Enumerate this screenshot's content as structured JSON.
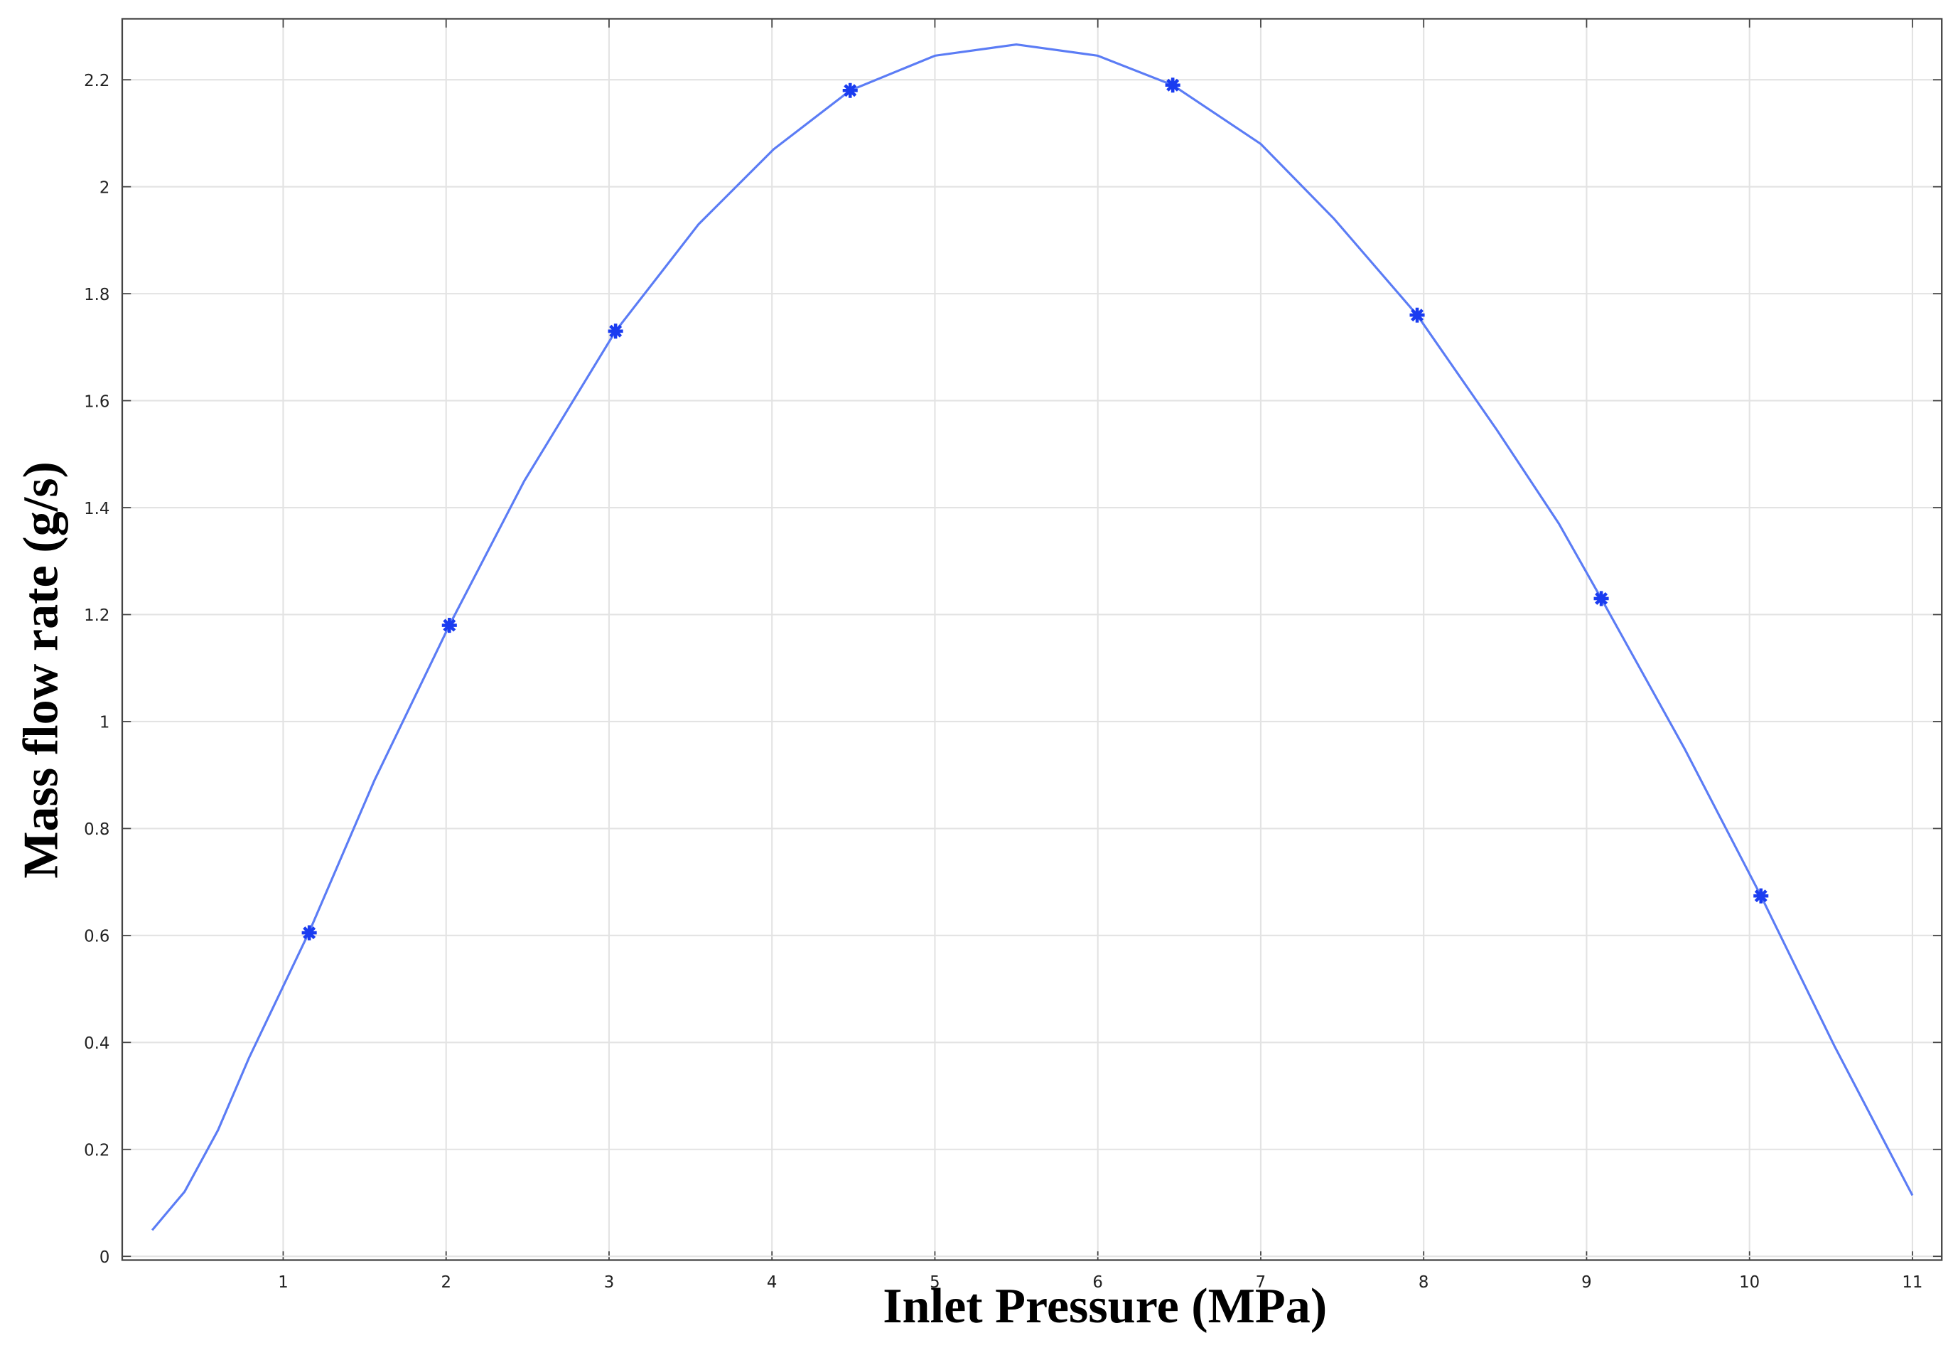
{
  "chart_data": {
    "type": "line",
    "x_label": "Inlet Pressure (MPa)",
    "y_label": "Mass flow rate (g/s)",
    "xlim": [
      0.012,
      11.18
    ],
    "ylim": [
      -0.007,
      2.314
    ],
    "xticks": [
      1,
      2,
      3,
      4,
      5,
      6,
      7,
      8,
      9,
      10,
      11
    ],
    "yticks": [
      0,
      0.2,
      0.4,
      0.6,
      0.8,
      1,
      1.2,
      1.4,
      1.6,
      1.8,
      2,
      2.2
    ],
    "grid": true,
    "series": [
      {
        "color": "#5b7cf5",
        "marker": false,
        "x": [
          0.196,
          0.395,
          0.6,
          0.79,
          1.16,
          1.56,
          2.02,
          2.48,
          3.04,
          3.55,
          4.01,
          4.48,
          5.0,
          5.5,
          6.0,
          6.46,
          7.0,
          7.45,
          7.96,
          8.45,
          8.83,
          9.09,
          9.6,
          10.07,
          10.52,
          11.0
        ],
        "values": [
          0.049,
          0.121,
          0.236,
          0.371,
          0.607,
          0.89,
          1.18,
          1.45,
          1.73,
          1.93,
          2.07,
          2.18,
          2.245,
          2.266,
          2.245,
          2.19,
          2.08,
          1.94,
          1.76,
          1.545,
          1.37,
          1.23,
          0.95,
          0.674,
          0.394,
          0.114
        ]
      },
      {
        "color": "#1a3cf0",
        "marker": true,
        "x": [
          1.16,
          2.02,
          3.04,
          4.48,
          6.46,
          7.96,
          9.09,
          10.07
        ],
        "values": [
          0.605,
          1.18,
          1.73,
          2.18,
          2.19,
          1.76,
          1.23,
          0.674
        ]
      }
    ]
  }
}
